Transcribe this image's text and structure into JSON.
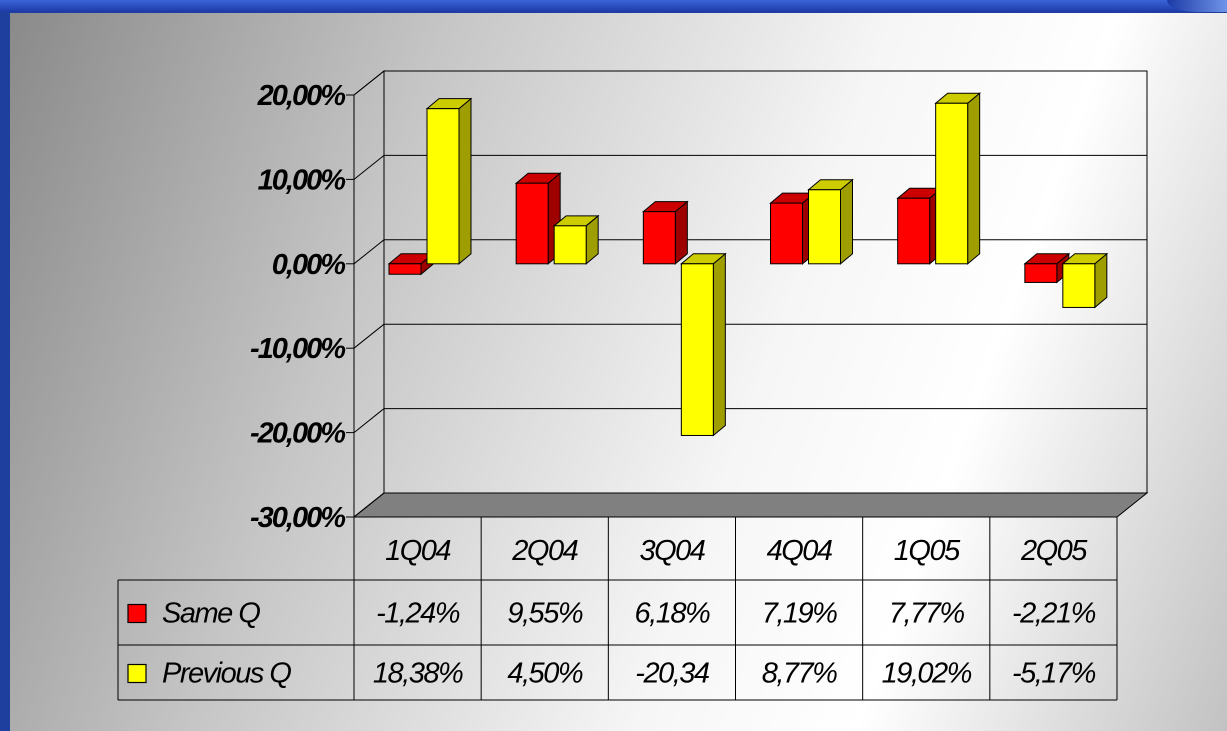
{
  "chart_data": {
    "type": "bar",
    "categories": [
      "1Q04",
      "2Q04",
      "3Q04",
      "4Q04",
      "1Q05",
      "2Q05"
    ],
    "series": [
      {
        "name": "Same Q",
        "values": [
          -1.24,
          9.55,
          6.18,
          7.19,
          7.77,
          -2.21
        ],
        "labels": [
          "-1,24%",
          "9,55%",
          "6,18%",
          "7,19%",
          "7,77%",
          "-2,21%"
        ],
        "color": "#ff0000"
      },
      {
        "name": "Previous Q",
        "values": [
          18.38,
          4.5,
          -20.34,
          8.77,
          19.02,
          -5.17
        ],
        "labels": [
          "18,38%",
          "4,50%",
          "-20,34",
          "8,77%",
          "19,02%",
          "-5,17%"
        ],
        "color": "#ffff00"
      }
    ],
    "y_ticks": [
      20,
      10,
      0,
      -10,
      -20,
      -30
    ],
    "y_tick_labels": [
      "20,00%",
      "10,00%",
      "0,00%",
      "-10,00%",
      "-20,00%",
      "-30,00%"
    ],
    "ylim": [
      -30,
      20
    ],
    "grid": true,
    "data_table": true,
    "style": "3d-clustered-column"
  },
  "colors": {
    "frame_blue": "#1f3f9e",
    "floor": "#808080",
    "gridline": "#000000"
  }
}
